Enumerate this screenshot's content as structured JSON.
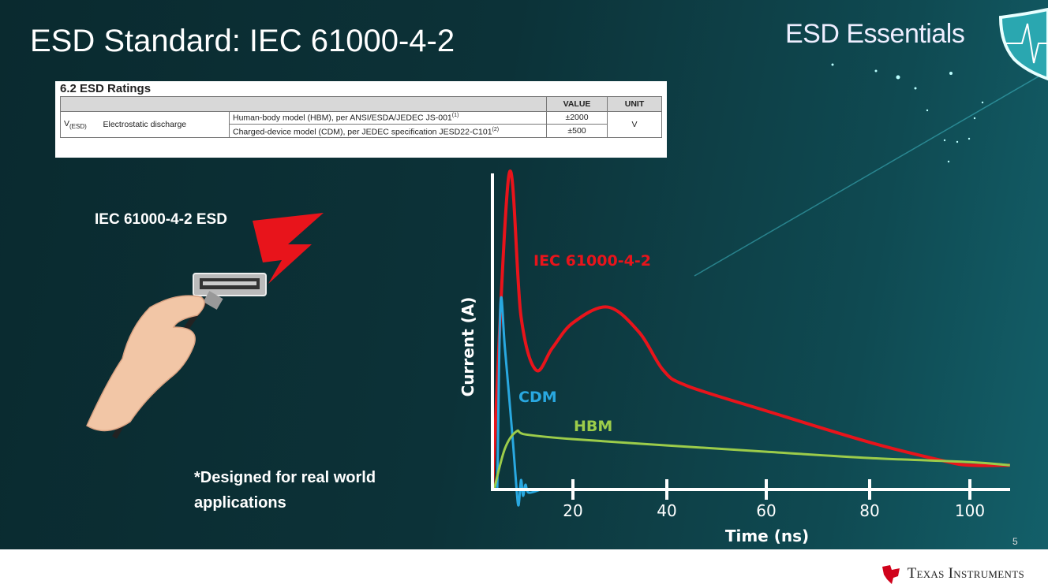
{
  "slide": {
    "title": "ESD Standard: IEC 61000-4-2",
    "brand": "ESD Essentials",
    "page_number": "5",
    "footer_company": "Texas Instruments"
  },
  "ratings_table": {
    "title": "6.2  ESD Ratings",
    "headers": [
      "",
      "",
      "",
      "VALUE",
      "UNIT"
    ],
    "symbol": "V",
    "symbol_sub": "(ESD)",
    "parameter": "Electrostatic discharge",
    "rows": [
      {
        "condition": "Human-body model (HBM), per ANSI/ESDA/JEDEC JS-001",
        "note": "(1)",
        "value": "±2000"
      },
      {
        "condition": "Charged-device model (CDM), per JEDEC specification JESD22-C101",
        "note": "(2)",
        "value": "±500"
      }
    ],
    "unit": "V"
  },
  "left_panel": {
    "label": "IEC 61000-4-2 ESD",
    "note": "*Designed for real world applications"
  },
  "chart_data": {
    "type": "line",
    "xlabel": "Time (ns)",
    "ylabel": "Current (A)",
    "x_ticks": [
      "20",
      "40",
      "60",
      "80",
      "100"
    ],
    "xlim": [
      0,
      108
    ],
    "ylim": [
      0,
      1
    ],
    "y_units_note_hidden": null,
    "grid": false,
    "series": [
      {
        "name": "IEC 61000-4-2",
        "color": "#e8141b",
        "x": [
          0,
          4.1,
          7.1,
          10.8,
          14.9,
          20,
          27.4,
          34.1,
          39.2,
          44,
          60,
          80,
          95,
          100,
          108
        ],
        "y": [
          0,
          1.0,
          0.55,
          0.38,
          0.45,
          0.53,
          0.58,
          0.5,
          0.38,
          0.33,
          0.25,
          0.15,
          0.09,
          0.077,
          0.077
        ]
      },
      {
        "name": "CDM",
        "color": "#29a8e0",
        "x": [
          1.2,
          2,
          3.1,
          5.1,
          6,
          6.5,
          7.1,
          7.6,
          8.2,
          9,
          12
        ],
        "y": [
          0,
          0.59,
          0.45,
          0.15,
          0,
          -0.05,
          0.03,
          -0.02,
          0.015,
          -0.01,
          0
        ]
      },
      {
        "name": "HBM",
        "color": "#9ccc4a",
        "x": [
          0.4,
          3.1,
          6,
          8.2,
          20,
          40,
          60,
          80,
          100,
          108
        ],
        "y": [
          0,
          0.13,
          0.185,
          0.175,
          0.16,
          0.14,
          0.12,
          0.1,
          0.087,
          0.077
        ]
      }
    ]
  }
}
